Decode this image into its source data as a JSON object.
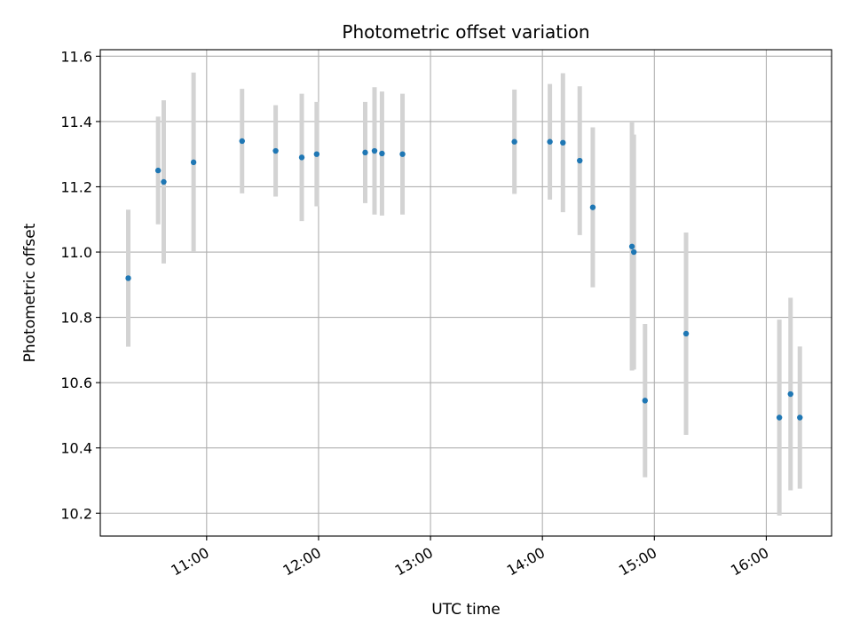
{
  "chart_data": {
    "type": "scatter",
    "title": "Photometric offset variation",
    "xlabel": "UTC time",
    "ylabel": "Photometric offset",
    "x_format": "HH:MM",
    "xlim": [
      "10:03",
      "16:35"
    ],
    "ylim": [
      10.13,
      11.62
    ],
    "xticks": [
      "11:00",
      "12:00",
      "13:00",
      "14:00",
      "15:00",
      "16:00"
    ],
    "yticks": [
      10.2,
      10.4,
      10.6,
      10.8,
      11.0,
      11.2,
      11.4,
      11.6
    ],
    "grid": true,
    "legend": "none",
    "point_color": "#1f77b4",
    "errorbar_color": "#d3d3d3",
    "points": [
      {
        "x": "10:18",
        "y": 10.92,
        "err": 0.21
      },
      {
        "x": "10:34",
        "y": 11.25,
        "err": 0.165
      },
      {
        "x": "10:37",
        "y": 11.215,
        "err": 0.25
      },
      {
        "x": "10:53",
        "y": 11.275,
        "err": 0.275
      },
      {
        "x": "11:19",
        "y": 11.34,
        "err": 0.16
      },
      {
        "x": "11:37",
        "y": 11.31,
        "err": 0.14
      },
      {
        "x": "11:51",
        "y": 11.29,
        "err": 0.195
      },
      {
        "x": "11:59",
        "y": 11.3,
        "err": 0.16
      },
      {
        "x": "12:25",
        "y": 11.305,
        "err": 0.155
      },
      {
        "x": "12:30",
        "y": 11.31,
        "err": 0.195
      },
      {
        "x": "12:34",
        "y": 11.302,
        "err": 0.19
      },
      {
        "x": "12:45",
        "y": 11.3,
        "err": 0.185
      },
      {
        "x": "13:45",
        "y": 11.338,
        "err": 0.16
      },
      {
        "x": "14:04",
        "y": 11.338,
        "err": 0.177
      },
      {
        "x": "14:11",
        "y": 11.335,
        "err": 0.213
      },
      {
        "x": "14:20",
        "y": 11.28,
        "err": 0.228
      },
      {
        "x": "14:27",
        "y": 11.137,
        "err": 0.245
      },
      {
        "x": "14:48",
        "y": 11.017,
        "err": 0.38
      },
      {
        "x": "14:49",
        "y": 11.0,
        "err": 0.36
      },
      {
        "x": "14:55",
        "y": 10.545,
        "err": 0.235
      },
      {
        "x": "15:17",
        "y": 10.75,
        "err": 0.31
      },
      {
        "x": "16:07",
        "y": 10.493,
        "err": 0.3
      },
      {
        "x": "16:13",
        "y": 10.565,
        "err": 0.295
      },
      {
        "x": "16:18",
        "y": 10.493,
        "err": 0.218
      }
    ]
  }
}
